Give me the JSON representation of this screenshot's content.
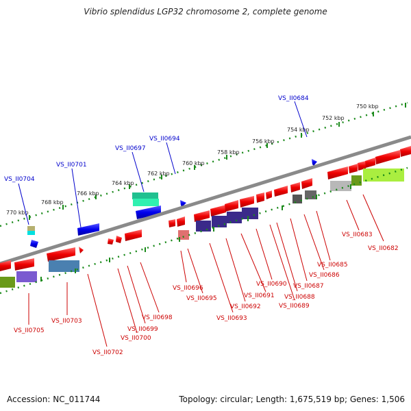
{
  "title": "Vibrio splendidus LGP32 chromosome 2, complete genome",
  "footer": {
    "accession": "Accession: NC_011744",
    "summary": "Topology: circular; Length: 1,675,519 bp; Genes: 1,506"
  },
  "kbp_labels": [
    "770 kbp",
    "768 kbp",
    "766 kbp",
    "764 kbp",
    "762 kbp",
    "760 kbp",
    "758 kbp",
    "756 kbp",
    "754 kbp",
    "752 kbp",
    "750 kbp"
  ],
  "top_loci": [
    "VS_II0704",
    "VS_II0701",
    "VS_II0697",
    "VS_II0694",
    "VS_II0684"
  ],
  "bottom_loci": [
    "VS_II0705",
    "VS_II0703",
    "VS_II0702",
    "VS_II0700",
    "VS_II0699",
    "VS_II0698",
    "VS_II0696",
    "VS_II0695",
    "VS_II0693",
    "VS_II0692",
    "VS_II0691",
    "VS_II0690",
    "VS_II0689",
    "VS_II0688",
    "VS_II0687",
    "VS_II0686",
    "VS_II0685",
    "VS_II0683",
    "VS_II0682"
  ],
  "colors": {
    "forward_gene": "#e00000",
    "reverse_gene": "#0000e0",
    "backbone": "#888888",
    "tick": "#1a8a1a",
    "forward_label": "#cc0000",
    "reverse_label": "#0000cc"
  }
}
